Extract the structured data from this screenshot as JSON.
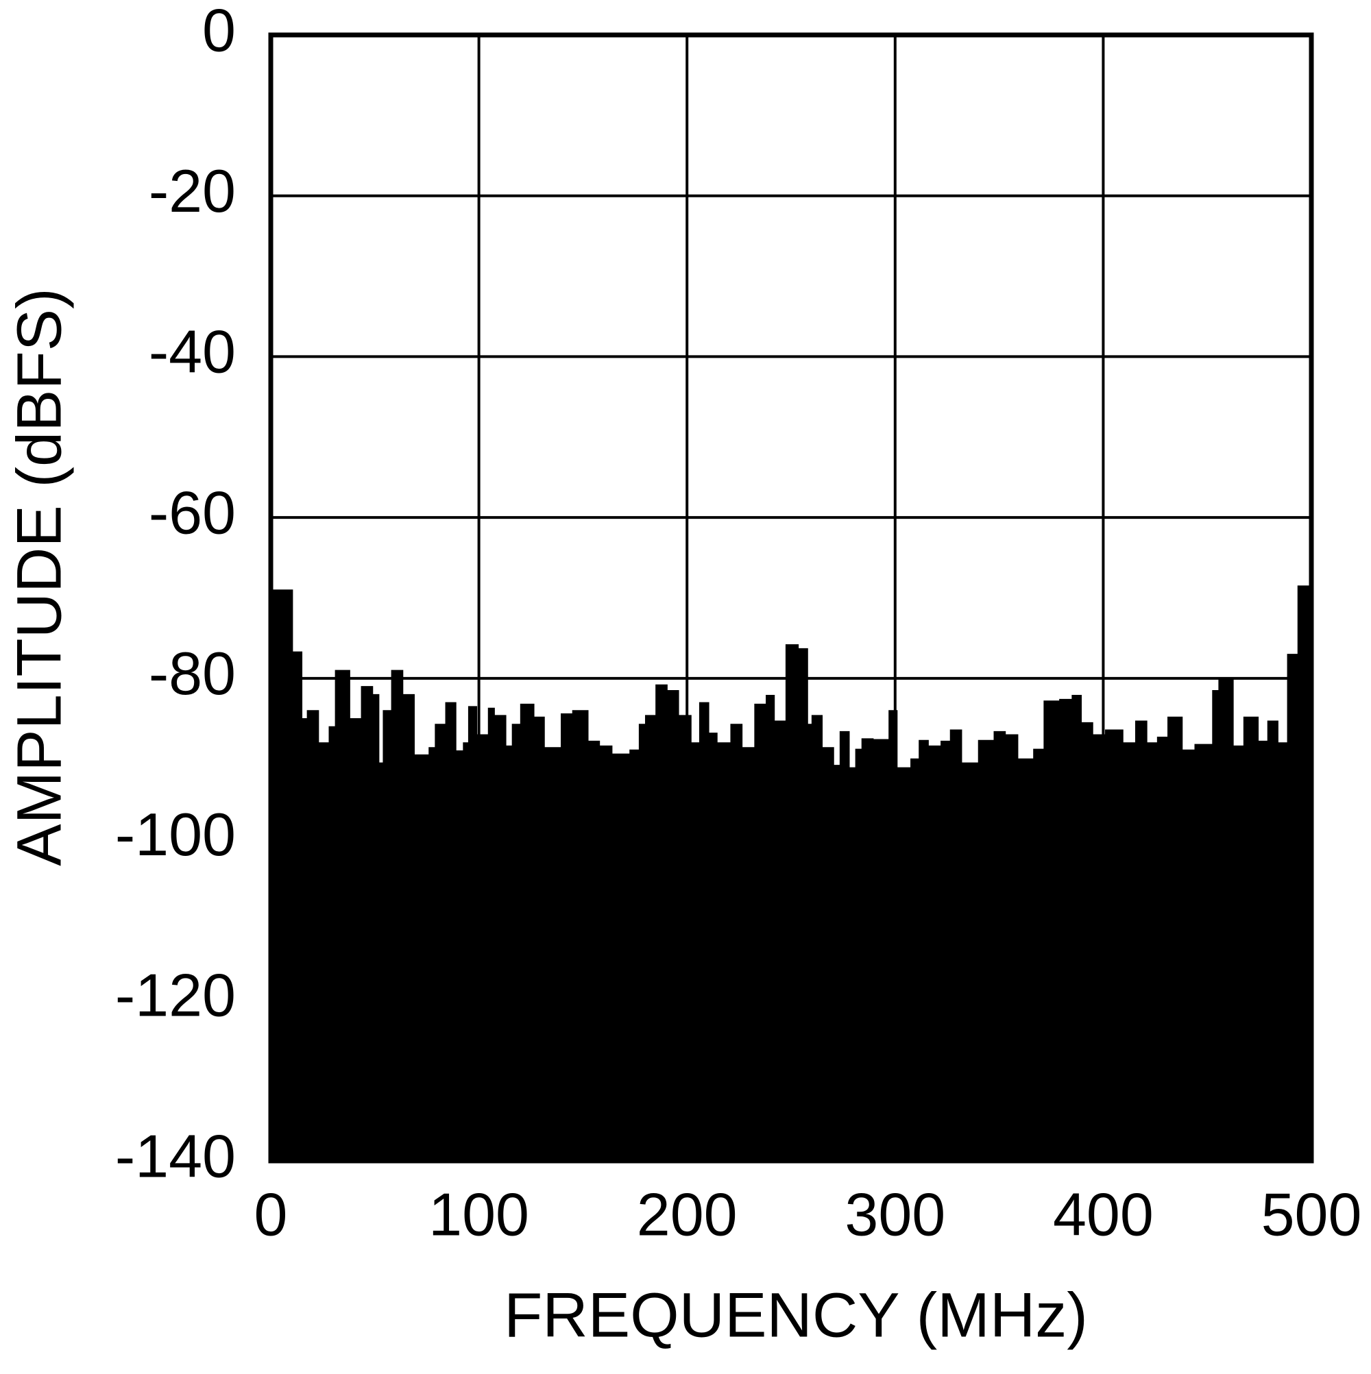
{
  "chart_data": {
    "type": "area",
    "xlabel": "FREQUENCY (MHz)",
    "ylabel": "AMPLITUDE (dBFS)",
    "xlim": [
      0,
      500
    ],
    "xticks": [
      0,
      100,
      200,
      300,
      400,
      500
    ],
    "ylim": [
      -140,
      0
    ],
    "yticks": [
      0,
      -20,
      -40,
      -60,
      -80,
      -100,
      -120,
      -140
    ],
    "grid": true,
    "step": true,
    "color": "#000000",
    "x": [
      0,
      10.5,
      15,
      17.5,
      23,
      28,
      31,
      38,
      43.5,
      49,
      52,
      54,
      58,
      63.5,
      69,
      76,
      79,
      84,
      89,
      92.5,
      95,
      99,
      104.5,
      107.5,
      113,
      116,
      120,
      126.5,
      131.5,
      139.5,
      145,
      152.5,
      158,
      164,
      172.5,
      177,
      180,
      185,
      190.5,
      196,
      202,
      206,
      210.5,
      214.5,
      221,
      226.5,
      232.5,
      238,
      242,
      247.5,
      253.5,
      258,
      260,
      265,
      270.5,
      273.5,
      278,
      281,
      284,
      289.5,
      297,
      301,
      307.5,
      311.5,
      316,
      322,
      326.5,
      332,
      340,
      347.5,
      353,
      359,
      366.5,
      371.5,
      379,
      385,
      389.5,
      395,
      401,
      409.5,
      415.5,
      421,
      426,
      431,
      438,
      444,
      452.5,
      455.5,
      462.5,
      467.5,
      474.5,
      479,
      484,
      488.5,
      493.5
    ],
    "values": [
      -69,
      -76.7,
      -85,
      -84,
      -88,
      -86,
      -79,
      -85,
      -81,
      -82,
      -90.5,
      -84,
      -79,
      -82,
      -89.5,
      -88.6,
      -85.7,
      -83,
      -89,
      -88,
      -83.5,
      -87,
      -83.7,
      -84.6,
      -88.4,
      -85.7,
      -83.2,
      -84.8,
      -88.6,
      -84.4,
      -84,
      -87.8,
      -88.4,
      -89.4,
      -88.9,
      -85.7,
      -84.6,
      -80.8,
      -81.5,
      -84.6,
      -88,
      -83,
      -86.8,
      -88,
      -85.7,
      -88.6,
      -83.2,
      -82.1,
      -85.3,
      -75.8,
      -76.3,
      -85.7,
      -84.6,
      -88.6,
      -90.8,
      -86.6,
      -91.1,
      -88.8,
      -87.5,
      -87.6,
      -84,
      -91.1,
      -90,
      -87.7,
      -88.4,
      -87.8,
      -86.4,
      -90.5,
      -87.7,
      -86.6,
      -87,
      -90,
      -88.8,
      -82.8,
      -82.6,
      -82.1,
      -85.5,
      -87,
      -86.4,
      -88,
      -85.3,
      -88,
      -87.3,
      -84.8,
      -88.9,
      -88.2,
      -81.5,
      -79.9,
      -88.4,
      -84.8,
      -87.8,
      -85.3,
      -88,
      -77,
      -68.5
    ]
  }
}
